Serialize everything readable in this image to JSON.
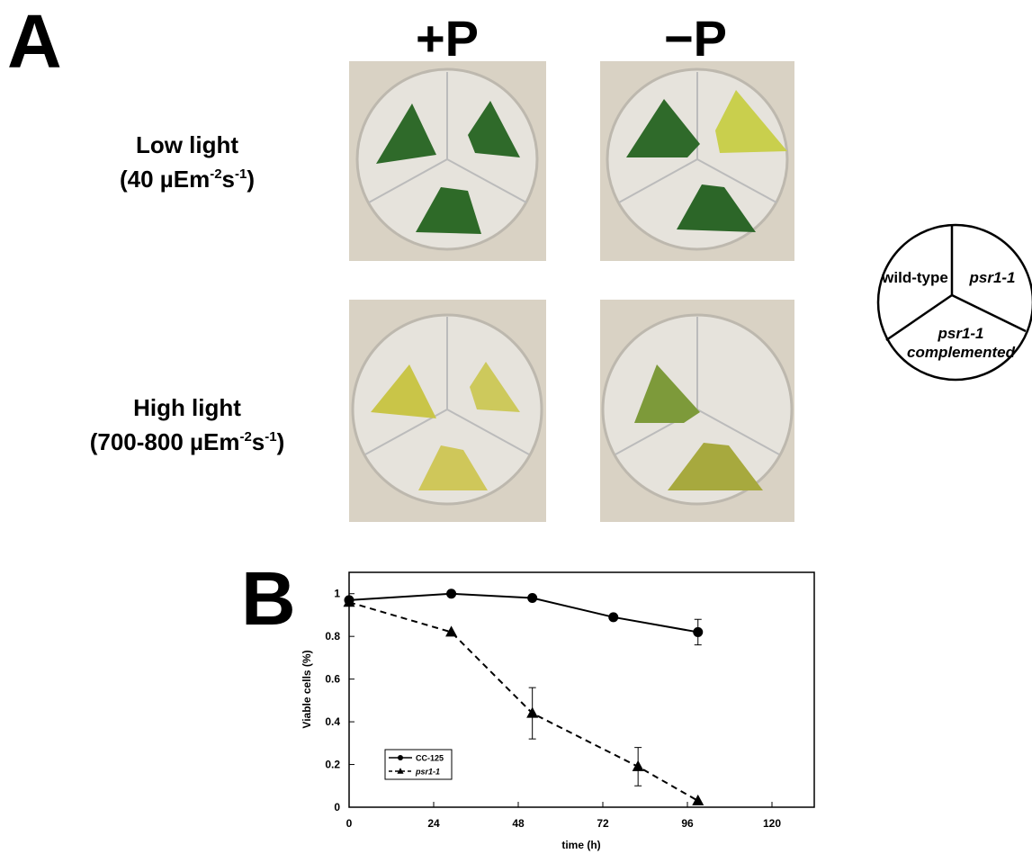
{
  "panel_a": {
    "label": "A",
    "columns": [
      "+P",
      "−P"
    ],
    "rows": [
      {
        "title": "Low light",
        "condition": [
          "(40 µEm",
          "-2",
          "s",
          "-1",
          ")"
        ]
      },
      {
        "title": "High light",
        "condition": [
          "(700-800 µEm",
          "-2",
          "s",
          "-1",
          ")"
        ]
      }
    ],
    "key": {
      "wild_type": "wild-type",
      "mutant": "psr1-1",
      "complemented": [
        "psr1-1",
        "complemented"
      ]
    }
  },
  "panel_b": {
    "label": "B",
    "chart_data": {
      "type": "line",
      "x_label": "time (h)",
      "y_label": "Viable cells (%)",
      "xlim": [
        0,
        132
      ],
      "xticks": [
        0,
        24,
        48,
        72,
        96,
        120
      ],
      "ylim": [
        0,
        1.1
      ],
      "yticks": [
        0,
        0.2,
        0.4,
        0.6,
        0.8,
        1
      ],
      "legend": "lower-left",
      "series": [
        {
          "name": "CC-125",
          "color": "#000000",
          "linestyle": "solid",
          "marker": "circle",
          "x": [
            0,
            29,
            52,
            75,
            99
          ],
          "values": [
            0.97,
            1.0,
            0.98,
            0.89,
            0.82
          ],
          "errors": [
            null,
            null,
            null,
            null,
            0.06
          ]
        },
        {
          "name": "psr1-1",
          "color": "#000000",
          "linestyle": "dashed",
          "marker": "triangle",
          "x": [
            0,
            29,
            52,
            82,
            99
          ],
          "values": [
            0.96,
            0.82,
            0.44,
            0.19,
            0.03
          ],
          "errors": [
            null,
            null,
            0.12,
            0.09,
            null
          ]
        }
      ]
    }
  }
}
